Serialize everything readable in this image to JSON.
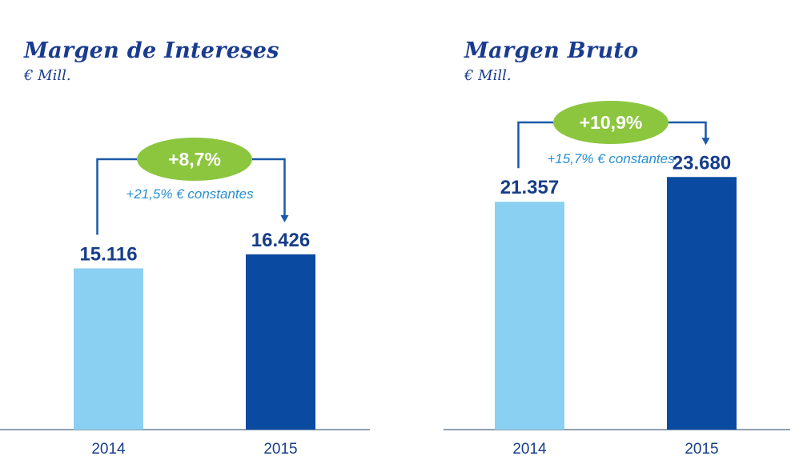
{
  "chart_data": [
    {
      "type": "bar",
      "title": "Margen de Intereses",
      "subtitle": "€ Mill.",
      "categories": [
        "2014",
        "2015"
      ],
      "values": [
        15116,
        16426
      ],
      "value_labels": [
        "15.116",
        "16.426"
      ],
      "ylim": [
        0,
        30000
      ],
      "grid": false,
      "bar_colors": [
        "#8ad0f2",
        "#0a4aa0"
      ],
      "annotation": {
        "growth": "+8,7%",
        "note": "+21,5% € constantes",
        "pill_color": "#8cc63f",
        "line_color": "#1a5aa8"
      }
    },
    {
      "type": "bar",
      "title": "Margen Bruto",
      "subtitle": "€ Mill.",
      "categories": [
        "2014",
        "2015"
      ],
      "values": [
        21357,
        23680
      ],
      "value_labels": [
        "21.357",
        "23.680"
      ],
      "ylim": [
        0,
        30000
      ],
      "grid": false,
      "bar_colors": [
        "#8ad0f2",
        "#0a4aa0"
      ],
      "annotation": {
        "growth": "+10,9%",
        "note": "+15,7% € constantes",
        "pill_color": "#8cc63f",
        "line_color": "#1a5aa8"
      }
    }
  ]
}
